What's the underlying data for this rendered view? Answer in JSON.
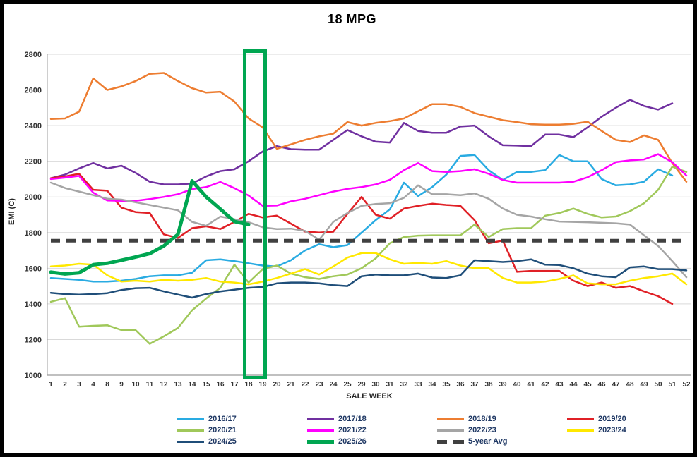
{
  "window": {
    "title": "18 MPG"
  },
  "chart_data": {
    "type": "line",
    "title": "18 MPG",
    "xlabel": "SALE WEEK",
    "ylabel": "EMI (C)",
    "ylim": [
      1000,
      2800
    ],
    "ytick_step": 200,
    "yticks": [
      1000,
      1200,
      1400,
      1600,
      1800,
      2000,
      2200,
      2400,
      2600,
      2800
    ],
    "grid": true,
    "legend_position": "bottom",
    "legend_columns": 4,
    "categories": [
      "1",
      "2",
      "3",
      "4",
      "8",
      "9",
      "10",
      "11",
      "12",
      "13",
      "14",
      "15",
      "16",
      "17",
      "18",
      "19",
      "20",
      "21",
      "22",
      "23",
      "24",
      "25",
      "29",
      "30",
      "31",
      "32",
      "33",
      "34",
      "35",
      "36",
      "37",
      "38",
      "39",
      "40",
      "41",
      "42",
      "43",
      "44",
      "45",
      "46",
      "47",
      "48",
      "49",
      "50",
      "51",
      "52"
    ],
    "highlight": {
      "description": "green rectangle outline over sale weeks 18-19",
      "from_category": "18",
      "to_category": "19",
      "color": "#00A651"
    },
    "series": [
      {
        "name": "2016/17",
        "color": "#29ABE2",
        "width": 2.5,
        "layer": 0,
        "values": [
          1545,
          1540,
          1535,
          1525,
          1525,
          1530,
          1540,
          1555,
          1560,
          1560,
          1575,
          1645,
          1650,
          1640,
          1628,
          1615,
          1610,
          1645,
          1700,
          1735,
          1718,
          1730,
          1800,
          1870,
          1930,
          2080,
          2005,
          2055,
          2125,
          2230,
          2235,
          2150,
          2095,
          2140,
          2140,
          2150,
          2235,
          2200,
          2200,
          2100,
          2065,
          2070,
          2085,
          2155,
          2120,
          null
        ]
      },
      {
        "name": "2017/18",
        "color": "#7030A0",
        "width": 2.5,
        "layer": 0,
        "values": [
          2105,
          2125,
          2160,
          2190,
          2160,
          2175,
          2135,
          2085,
          2070,
          2070,
          2075,
          2115,
          2145,
          2155,
          2200,
          2255,
          2285,
          2268,
          2265,
          2265,
          2320,
          2375,
          2340,
          2310,
          2305,
          2415,
          2370,
          2360,
          2360,
          2395,
          2400,
          2340,
          2290,
          2288,
          2285,
          2350,
          2350,
          2335,
          2390,
          2450,
          2500,
          2545,
          2510,
          2490,
          2525,
          null
        ]
      },
      {
        "name": "2018/19",
        "color": "#ED7D31",
        "width": 2.5,
        "layer": 0,
        "values": [
          2437,
          2440,
          2478,
          2665,
          2600,
          2620,
          2650,
          2690,
          2695,
          2650,
          2610,
          2585,
          2590,
          2535,
          2440,
          2390,
          2270,
          2295,
          2320,
          2340,
          2355,
          2420,
          2400,
          2415,
          2425,
          2440,
          2480,
          2520,
          2520,
          2505,
          2470,
          2450,
          2430,
          2420,
          2408,
          2405,
          2405,
          2410,
          2422,
          2370,
          2320,
          2308,
          2345,
          2320,
          2190,
          2085
        ]
      },
      {
        "name": "2019/20",
        "color": "#E02026",
        "width": 2.5,
        "layer": 0,
        "values": [
          2105,
          2115,
          2130,
          2040,
          2035,
          1940,
          1915,
          1910,
          1790,
          1770,
          1825,
          1835,
          1820,
          1860,
          1905,
          1885,
          1895,
          1850,
          1806,
          1800,
          1805,
          1905,
          2000,
          1900,
          1878,
          1935,
          1950,
          1962,
          1955,
          1950,
          1870,
          1740,
          1755,
          1580,
          1585,
          1585,
          1585,
          1530,
          1500,
          1520,
          1490,
          1500,
          1470,
          1443,
          1400,
          null
        ]
      },
      {
        "name": "2020/21",
        "color": "#A0C85A",
        "width": 2.5,
        "layer": 0,
        "values": [
          1412,
          1432,
          1272,
          1277,
          1280,
          1253,
          1253,
          1176,
          1218,
          1265,
          1364,
          1430,
          1490,
          1620,
          1520,
          1595,
          1615,
          1570,
          1550,
          1540,
          1555,
          1565,
          1600,
          1655,
          1740,
          1775,
          1783,
          1785,
          1785,
          1785,
          1845,
          1775,
          1820,
          1825,
          1825,
          1895,
          1910,
          1935,
          1905,
          1885,
          1890,
          1920,
          1965,
          2040,
          2170,
          2140
        ]
      },
      {
        "name": "2021/22",
        "color": "#FF00FF",
        "width": 2.5,
        "layer": 0,
        "values": [
          2100,
          2108,
          2118,
          2024,
          1980,
          1978,
          1978,
          1988,
          2000,
          2015,
          2044,
          2055,
          2084,
          2049,
          2008,
          1950,
          1952,
          1975,
          1990,
          2010,
          2030,
          2045,
          2055,
          2070,
          2096,
          2150,
          2190,
          2145,
          2140,
          2145,
          2155,
          2130,
          2095,
          2080,
          2080,
          2080,
          2080,
          2085,
          2110,
          2150,
          2195,
          2205,
          2210,
          2240,
          2195,
          2120
        ]
      },
      {
        "name": "2022/23",
        "color": "#A5A5A5",
        "width": 2.5,
        "layer": 0,
        "values": [
          2080,
          2050,
          2030,
          2010,
          1990,
          1985,
          1970,
          1955,
          1940,
          1925,
          1860,
          1838,
          1890,
          1875,
          1858,
          1830,
          1820,
          1822,
          1810,
          1760,
          1860,
          1910,
          1950,
          1960,
          1965,
          1995,
          2065,
          2015,
          2015,
          2010,
          2020,
          1990,
          1935,
          1900,
          1890,
          1875,
          1862,
          1860,
          1858,
          1855,
          1852,
          1845,
          1785,
          1725,
          1640,
          1550
        ]
      },
      {
        "name": "2023/24",
        "color": "#FFE800",
        "width": 2.5,
        "layer": 0,
        "values": [
          1610,
          1615,
          1625,
          1620,
          1560,
          1525,
          1530,
          1525,
          1535,
          1530,
          1535,
          1545,
          1525,
          1520,
          1510,
          1525,
          1545,
          1570,
          1595,
          1565,
          1610,
          1660,
          1685,
          1685,
          1650,
          1625,
          1630,
          1625,
          1640,
          1615,
          1600,
          1600,
          1545,
          1520,
          1520,
          1525,
          1540,
          1560,
          1515,
          1510,
          1510,
          1530,
          1545,
          1555,
          1570,
          1510
        ]
      },
      {
        "name": "2024/25",
        "color": "#1F4E79",
        "width": 2.5,
        "layer": 0,
        "values": [
          1462,
          1455,
          1452,
          1455,
          1460,
          1478,
          1488,
          1490,
          1470,
          1452,
          1435,
          1455,
          1470,
          1480,
          1490,
          1495,
          1515,
          1520,
          1520,
          1515,
          1505,
          1500,
          1555,
          1565,
          1560,
          1560,
          1570,
          1548,
          1545,
          1560,
          1645,
          1640,
          1635,
          1640,
          1650,
          1620,
          1618,
          1600,
          1570,
          1555,
          1550,
          1605,
          1610,
          1595,
          1595,
          1588
        ]
      },
      {
        "name": "2025/26",
        "color": "#00A651",
        "width": 5,
        "layer": 2,
        "values": [
          1578,
          1568,
          1575,
          1620,
          1628,
          1645,
          1663,
          1682,
          1725,
          1790,
          2090,
          2000,
          1932,
          1862,
          1845,
          null,
          null,
          null,
          null,
          null,
          null,
          null,
          null,
          null,
          null,
          null,
          null,
          null,
          null,
          null,
          null,
          null,
          null,
          null,
          null,
          null,
          null,
          null,
          null,
          null,
          null,
          null,
          null,
          null,
          null,
          null
        ]
      },
      {
        "name": "5-year Avg",
        "color": "#404040",
        "width": 5,
        "layer": 1,
        "dash": "13 9",
        "constant": 1755
      }
    ]
  }
}
